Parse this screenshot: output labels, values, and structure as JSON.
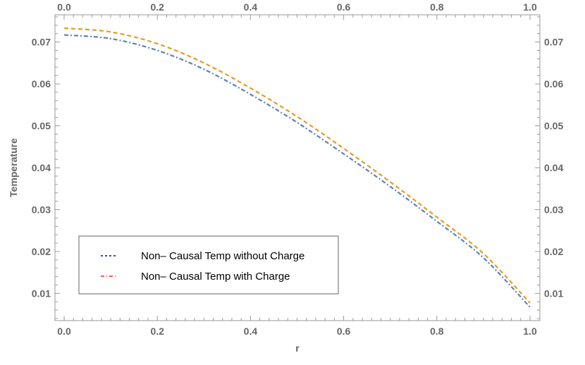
{
  "chart_data": {
    "type": "line",
    "xlabel": "r",
    "ylabel": "Temperature",
    "xlim": [
      0.0,
      1.0
    ],
    "ylim": [
      0.0035,
      0.0765
    ],
    "x_ticks": [
      "0.0",
      "0.2",
      "0.4",
      "0.6",
      "0.8",
      "1.0"
    ],
    "y_ticks": [
      "0.01",
      "0.02",
      "0.03",
      "0.04",
      "0.05",
      "0.06",
      "0.07"
    ],
    "grid": false,
    "frame_ticks": "all four sides",
    "legend_position": "bottom-left",
    "series": [
      {
        "name": "Non– Causal Temp without Charge",
        "color": "#5e81b5",
        "legend_color": "#0000cc",
        "dash": "dot-dash",
        "x": [
          0.0,
          0.1,
          0.2,
          0.3,
          0.4,
          0.5,
          0.6,
          0.7,
          0.8,
          0.9,
          1.0
        ],
        "y": [
          0.0717,
          0.0708,
          0.068,
          0.0635,
          0.0575,
          0.0508,
          0.0433,
          0.0355,
          0.0272,
          0.0185,
          0.0067
        ]
      },
      {
        "name": "Non– Causal Temp with Charge",
        "color": "#e19c24",
        "legend_color": "#ff2020",
        "dash": "dashed",
        "x": [
          0.0,
          0.1,
          0.2,
          0.3,
          0.4,
          0.5,
          0.6,
          0.7,
          0.8,
          0.9,
          1.0
        ],
        "y": [
          0.0733,
          0.0724,
          0.0696,
          0.065,
          0.059,
          0.0522,
          0.0446,
          0.0366,
          0.0282,
          0.0195,
          0.0077
        ]
      }
    ]
  }
}
